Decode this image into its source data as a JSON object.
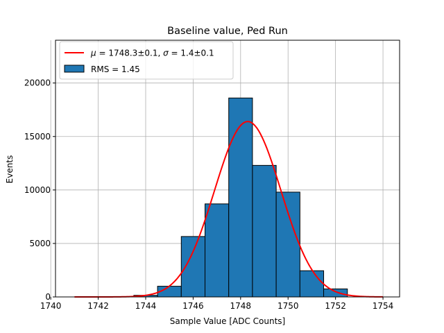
{
  "chart_data": {
    "type": "bar",
    "title": "Baseline value, Ped Run",
    "xlabel": "Sample Value [ADC Counts]",
    "ylabel": "Events",
    "xlim": [
      1740.2,
      1754.7
    ],
    "ylim": [
      0,
      24000
    ],
    "x_ticks": [
      1740,
      1742,
      1744,
      1746,
      1748,
      1750,
      1752,
      1754
    ],
    "y_ticks": [
      0,
      5000,
      10000,
      15000,
      20000
    ],
    "grid": true,
    "legend_position": "top-left",
    "bins": [
      {
        "left": 1743.5,
        "right": 1744.5,
        "value": 150
      },
      {
        "left": 1744.5,
        "right": 1745.5,
        "value": 1000
      },
      {
        "left": 1745.5,
        "right": 1746.5,
        "value": 5650
      },
      {
        "left": 1746.5,
        "right": 1747.5,
        "value": 8700
      },
      {
        "left": 1747.5,
        "right": 1748.5,
        "value": 18600
      },
      {
        "left": 1748.5,
        "right": 1749.5,
        "value": 12300
      },
      {
        "left": 1749.5,
        "right": 1750.5,
        "value": 9800
      },
      {
        "left": 1750.5,
        "right": 1751.5,
        "value": 2450
      },
      {
        "left": 1751.5,
        "right": 1752.5,
        "value": 750
      }
    ],
    "fit": {
      "mu": 1748.3,
      "sigma": 1.4,
      "amplitude": 16400,
      "x_range": [
        1741,
        1754
      ]
    },
    "legend": {
      "fit_label_mu": "μ",
      "fit_label_mu_value": " = 1748.3±0.1, ",
      "fit_label_sigma": "σ",
      "fit_label_sigma_value": " = 1.4±0.1",
      "hist_label": "RMS = 1.45"
    },
    "colors": {
      "bar_fill": "#1f77b4",
      "bar_edge": "#000000",
      "fit_line": "#ff0000",
      "grid": "#b0b0b0"
    }
  }
}
